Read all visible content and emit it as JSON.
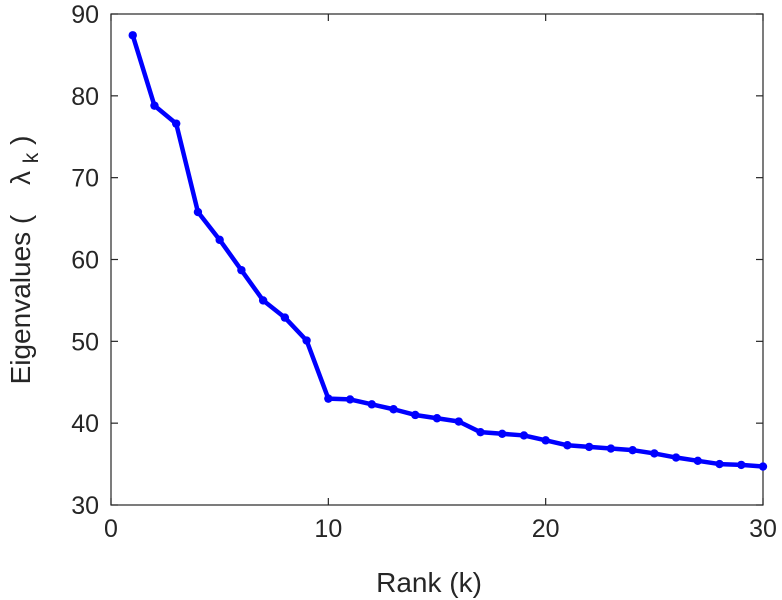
{
  "chart_data": {
    "type": "line",
    "title": "",
    "xlabel": "Rank (k)",
    "ylabel": {
      "text": "Eigenvalues (",
      "symbol": "λ",
      "subscript": "k",
      "close": ")"
    },
    "xlim": [
      0,
      30
    ],
    "ylim": [
      30,
      90
    ],
    "xticks": [
      0,
      10,
      20,
      30
    ],
    "yticks": [
      30,
      40,
      50,
      60,
      70,
      80,
      90
    ],
    "grid": false,
    "legend": "none",
    "color": "#0000ff",
    "series": [
      {
        "x": [
          1,
          2,
          3,
          4,
          5,
          6,
          7,
          8,
          9,
          10,
          11,
          12,
          13,
          14,
          15,
          16,
          17,
          18,
          19,
          20,
          21,
          22,
          23,
          24,
          25,
          26,
          27,
          28,
          29,
          30
        ],
        "y": [
          87.4,
          78.8,
          76.6,
          65.8,
          62.4,
          58.7,
          55.0,
          52.9,
          50.1,
          43.0,
          42.9,
          42.3,
          41.7,
          41.0,
          40.6,
          40.2,
          38.9,
          38.7,
          38.5,
          37.9,
          37.3,
          37.1,
          36.9,
          36.7,
          36.3,
          35.8,
          35.4,
          35.0,
          34.9,
          34.7
        ]
      }
    ]
  }
}
